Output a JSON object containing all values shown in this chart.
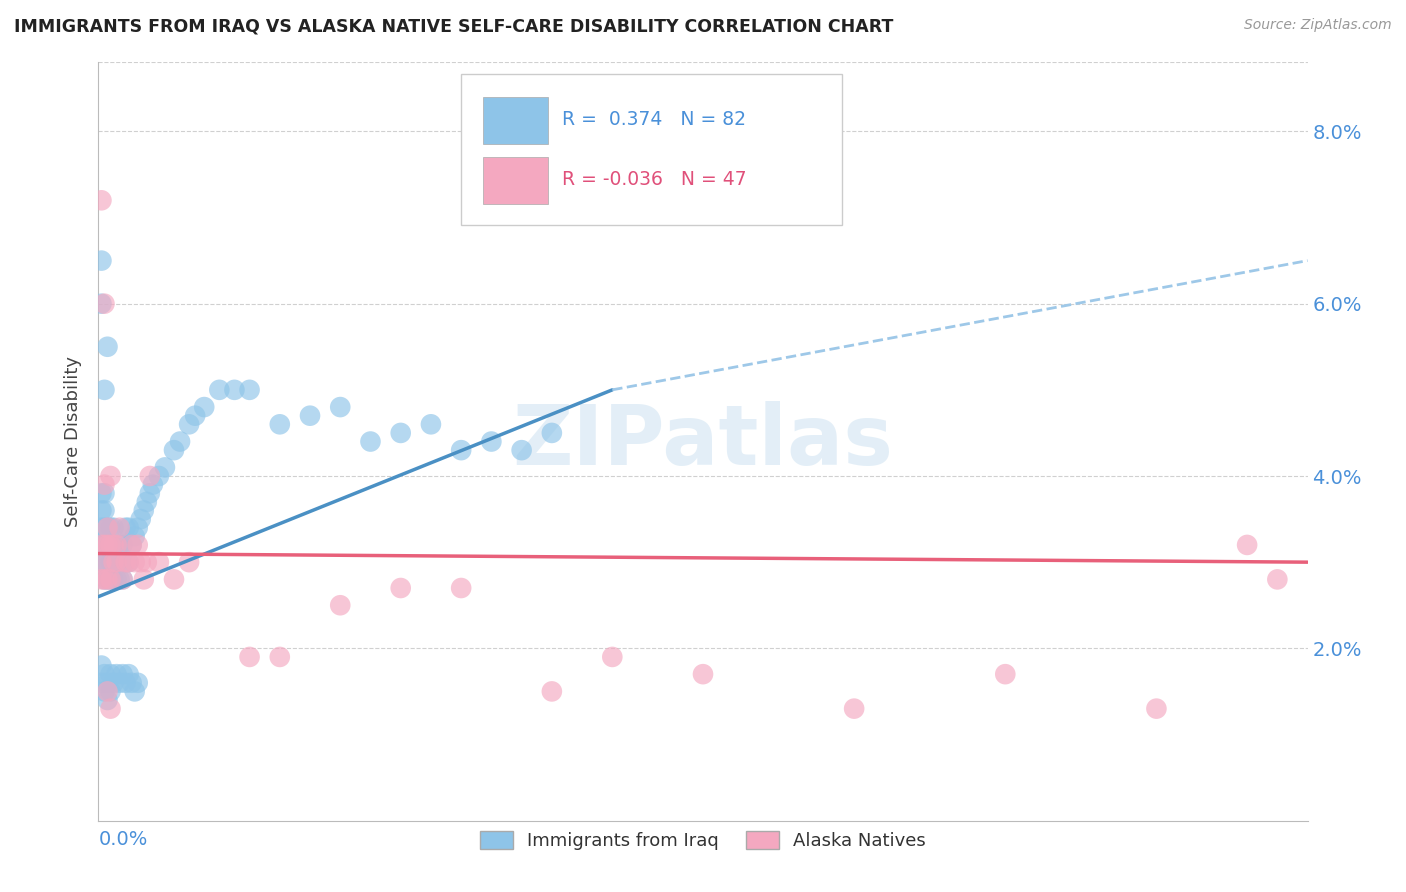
{
  "title": "IMMIGRANTS FROM IRAQ VS ALASKA NATIVE SELF-CARE DISABILITY CORRELATION CHART",
  "source": "Source: ZipAtlas.com",
  "ylabel": "Self-Care Disability",
  "yticks": [
    0.0,
    0.02,
    0.04,
    0.06,
    0.08
  ],
  "ytick_labels": [
    "",
    "2.0%",
    "4.0%",
    "6.0%",
    "8.0%"
  ],
  "xlim": [
    0.0,
    0.4
  ],
  "ylim": [
    0.0,
    0.088
  ],
  "color_blue": "#8ec4e8",
  "color_pink": "#f4a8c0",
  "color_blue_line": "#4a90c4",
  "color_pink_line": "#e8607a",
  "color_blue_dashed": "#9ec8e8",
  "color_axis_labels": "#4a90d9",
  "watermark_color": "#c8dff0",
  "grid_color": "#d0d0d0",
  "blue_x": [
    0.001,
    0.001,
    0.001,
    0.001,
    0.001,
    0.001,
    0.001,
    0.002,
    0.002,
    0.002,
    0.002,
    0.002,
    0.002,
    0.002,
    0.003,
    0.003,
    0.003,
    0.003,
    0.003,
    0.004,
    0.004,
    0.004,
    0.004,
    0.005,
    0.005,
    0.005,
    0.005,
    0.006,
    0.006,
    0.007,
    0.007,
    0.008,
    0.008,
    0.009,
    0.009,
    0.01,
    0.01,
    0.011,
    0.012,
    0.013,
    0.014,
    0.015,
    0.016,
    0.017,
    0.018,
    0.02,
    0.022,
    0.025,
    0.027,
    0.03,
    0.032,
    0.035,
    0.04,
    0.045,
    0.05,
    0.06,
    0.07,
    0.08,
    0.09,
    0.1,
    0.11,
    0.12,
    0.13,
    0.14,
    0.15,
    0.001,
    0.001,
    0.002,
    0.002,
    0.003,
    0.003,
    0.004,
    0.004,
    0.005,
    0.006,
    0.007,
    0.008,
    0.009,
    0.01,
    0.011,
    0.012,
    0.013
  ],
  "blue_y": [
    0.03,
    0.032,
    0.034,
    0.036,
    0.038,
    0.06,
    0.065,
    0.028,
    0.03,
    0.032,
    0.034,
    0.036,
    0.038,
    0.05,
    0.028,
    0.03,
    0.032,
    0.034,
    0.055,
    0.028,
    0.03,
    0.032,
    0.034,
    0.028,
    0.03,
    0.032,
    0.034,
    0.028,
    0.03,
    0.028,
    0.032,
    0.028,
    0.032,
    0.03,
    0.034,
    0.03,
    0.034,
    0.032,
    0.033,
    0.034,
    0.035,
    0.036,
    0.037,
    0.038,
    0.039,
    0.04,
    0.041,
    0.043,
    0.044,
    0.046,
    0.047,
    0.048,
    0.05,
    0.05,
    0.05,
    0.046,
    0.047,
    0.048,
    0.044,
    0.045,
    0.046,
    0.043,
    0.044,
    0.043,
    0.045,
    0.018,
    0.016,
    0.017,
    0.015,
    0.016,
    0.014,
    0.017,
    0.015,
    0.016,
    0.017,
    0.016,
    0.017,
    0.016,
    0.017,
    0.016,
    0.015,
    0.016
  ],
  "pink_x": [
    0.001,
    0.001,
    0.001,
    0.001,
    0.002,
    0.002,
    0.002,
    0.003,
    0.003,
    0.003,
    0.004,
    0.004,
    0.004,
    0.005,
    0.005,
    0.006,
    0.006,
    0.007,
    0.008,
    0.009,
    0.01,
    0.011,
    0.012,
    0.013,
    0.014,
    0.015,
    0.016,
    0.017,
    0.02,
    0.025,
    0.03,
    0.05,
    0.06,
    0.08,
    0.1,
    0.12,
    0.15,
    0.17,
    0.2,
    0.25,
    0.3,
    0.35,
    0.38,
    0.39,
    0.002,
    0.003,
    0.004
  ],
  "pink_y": [
    0.028,
    0.03,
    0.032,
    0.072,
    0.028,
    0.032,
    0.06,
    0.028,
    0.032,
    0.034,
    0.028,
    0.032,
    0.04,
    0.03,
    0.032,
    0.03,
    0.032,
    0.034,
    0.028,
    0.03,
    0.03,
    0.032,
    0.03,
    0.032,
    0.03,
    0.028,
    0.03,
    0.04,
    0.03,
    0.028,
    0.03,
    0.019,
    0.019,
    0.025,
    0.027,
    0.027,
    0.015,
    0.019,
    0.017,
    0.013,
    0.017,
    0.013,
    0.032,
    0.028,
    0.039,
    0.015,
    0.013
  ]
}
